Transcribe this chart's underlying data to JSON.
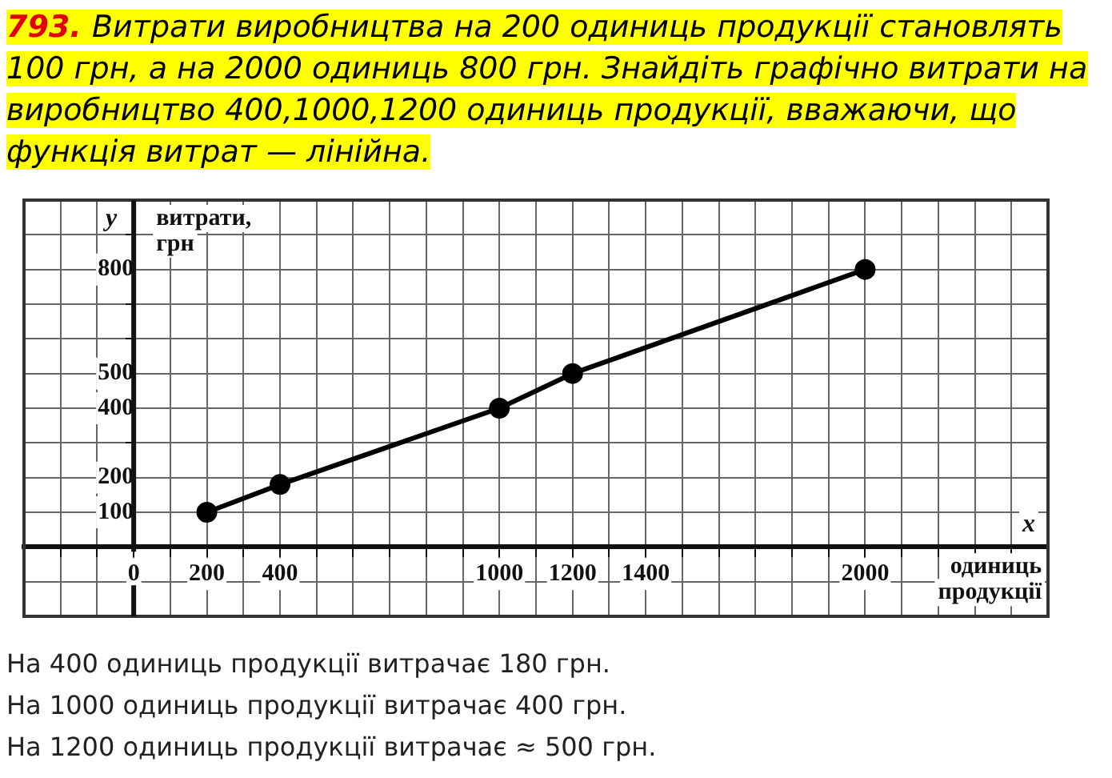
{
  "chart_data": {
    "type": "line",
    "title": "793. Витрати виробництва на 200 одиниць продукції становлять 100 грн, а на 2000 одиниць 800 грн. Знайдіть графічно витрати на виробництво 400,1000,1200 одиниць продукції, вважаючи, що функція витрат — лінійна.",
    "xlabel": "одиниць продукції",
    "ylabel": "витрати, грн",
    "series": [
      {
        "color": "#000000",
        "x": [
          200,
          400,
          1000,
          1200,
          2000
        ],
        "values": [
          100,
          180,
          400,
          500,
          800
        ]
      }
    ],
    "xlim": [
      -300,
      2500
    ],
    "ylim": [
      -200,
      1000
    ],
    "xticks": [
      {
        "value": -300,
        "label": null
      },
      {
        "value": -200,
        "label": null
      },
      {
        "value": -100,
        "label": null
      },
      0,
      {
        "value": 100,
        "label": null
      },
      200,
      {
        "value": 300,
        "label": null
      },
      400,
      {
        "value": 500,
        "label": null
      },
      {
        "value": 600,
        "label": null
      },
      {
        "value": 700,
        "label": null
      },
      {
        "value": 800,
        "label": null
      },
      {
        "value": 900,
        "label": null
      },
      1000,
      {
        "value": 1100,
        "label": null
      },
      1200,
      {
        "value": 1300,
        "label": null
      },
      1400,
      {
        "value": 1500,
        "label": null
      },
      {
        "value": 1600,
        "label": null
      },
      {
        "value": 1700,
        "label": null
      },
      {
        "value": 1800,
        "label": null
      },
      {
        "value": 1900,
        "label": null
      },
      2000,
      {
        "value": 2100,
        "label": null
      },
      {
        "value": 2200,
        "label": null
      },
      {
        "value": 2300,
        "label": null
      },
      {
        "value": 2400,
        "label": null
      },
      {
        "value": 2500,
        "label": null
      }
    ],
    "yticks": [
      {
        "value": -200,
        "label": null
      },
      {
        "value": -100,
        "label": null
      },
      {
        "value": 0,
        "label": null
      },
      100,
      200,
      {
        "value": 300,
        "label": null
      },
      400,
      500,
      {
        "value": 600,
        "label": null
      },
      {
        "value": 700,
        "label": null
      },
      800,
      {
        "value": 900,
        "label": null
      },
      {
        "value": 1000,
        "label": null
      }
    ],
    "grid": true,
    "marker": "circle",
    "line_style": "solid",
    "legend": false,
    "annotations": [
      "y",
      "x",
      "На 400 одиниць продукції витрачає 180 грн.",
      "На 1000 одиниць продукції витрачає 400 грн.",
      "На 1200 одиниць продукції витрачає ≈ 500 грн."
    ]
  }
}
